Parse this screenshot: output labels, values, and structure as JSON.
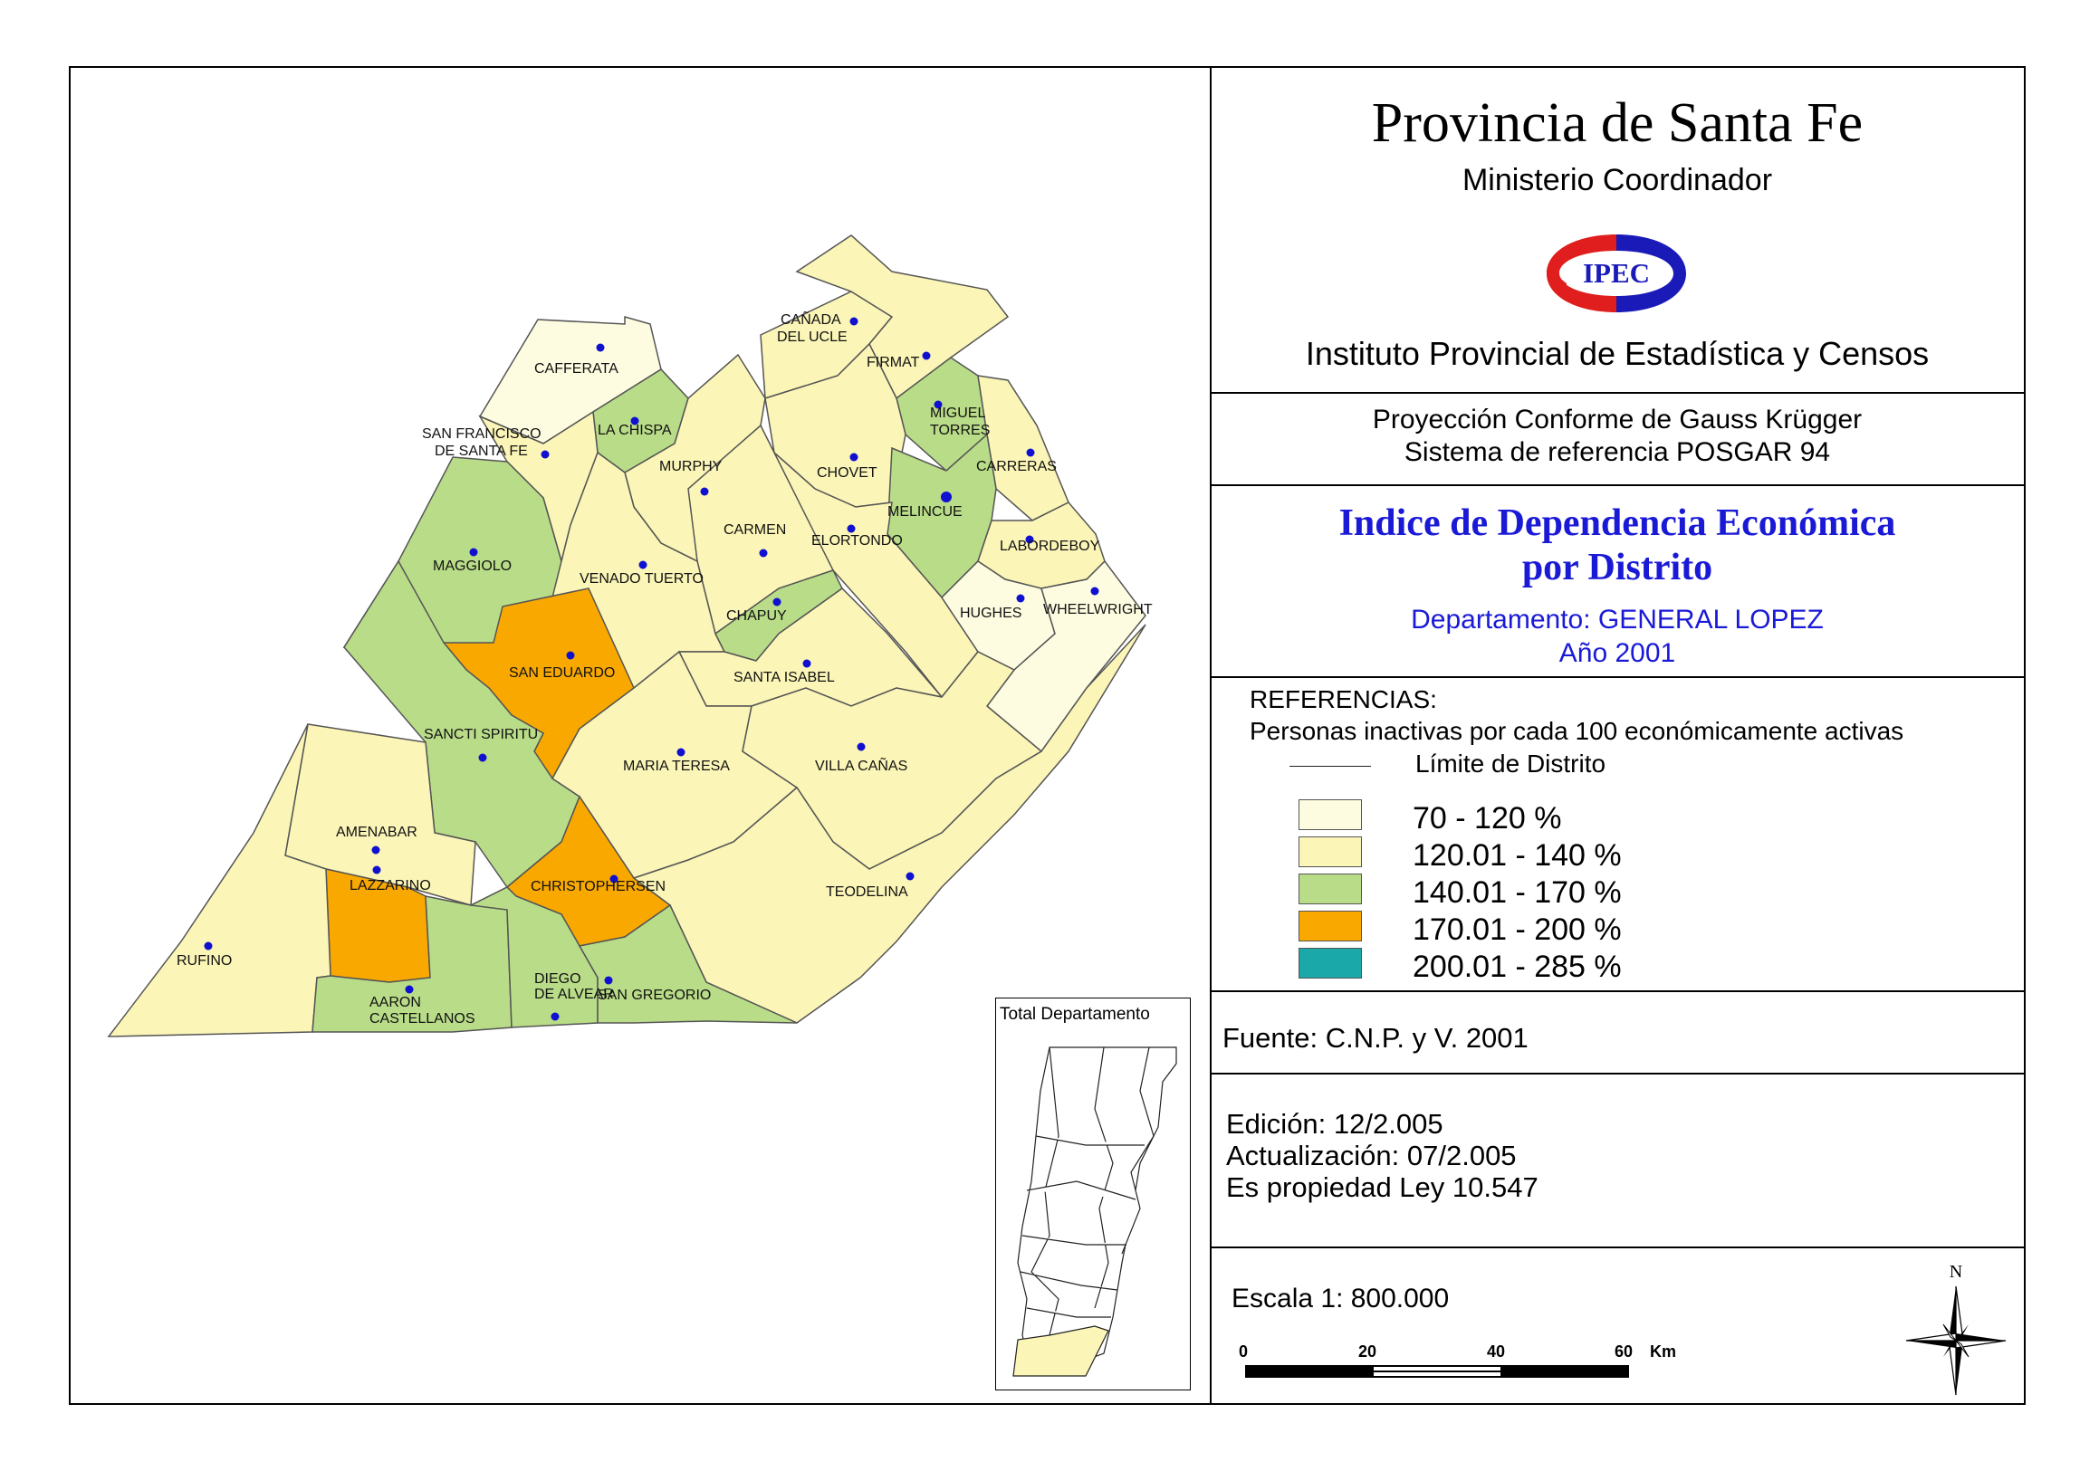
{
  "title": "Provincia de Santa Fe",
  "subtitle": "Ministerio Coordinador",
  "logo_text": "IPEC",
  "institute": "Instituto Provincial de Estadística y Censos",
  "projection": [
    "Proyección Conforme de Gauss Krügger",
    "Sistema de referencia POSGAR 94"
  ],
  "map_title": [
    "Indice de Dependencia Económica",
    "por Distrito"
  ],
  "department": "Departamento:  GENERAL LOPEZ",
  "year": "Año 2001",
  "legend": {
    "title": "REFERENCIAS:",
    "description": "Personas inactivas por cada 100 económicamente activas",
    "boundary_label": "Límite de  Distrito",
    "classes": [
      {
        "label": "70 - 120 %",
        "color": "#fdfce0"
      },
      {
        "label": "120.01 - 140 %",
        "color": "#fbf5b7"
      },
      {
        "label": "140.01 - 170 %",
        "color": "#b9dc88"
      },
      {
        "label": "170.01 - 200 %",
        "color": "#f9a800"
      },
      {
        "label": "200.01 - 285 %",
        "color": "#1ba8a8"
      }
    ]
  },
  "source": "Fuente:  C.N.P. y V. 2001",
  "edition": [
    "Edición:  12/2.005",
    "Actualización:  07/2.005",
    "Es propiedad Ley 10.547"
  ],
  "scale": {
    "text": "Escala 1: 800.000",
    "ticks": [
      "0",
      "20",
      "40",
      "60"
    ],
    "unit": "Km"
  },
  "north_label": "N",
  "inset_title": "Total Departamento",
  "districts": [
    {
      "name": "CAFFERATA",
      "class": 0
    },
    {
      "name": "LA CHISPA",
      "class": 2
    },
    {
      "name": "SAN FRANCISCO DE SANTA FE",
      "class": 1
    },
    {
      "name": "MAGGIOLO",
      "class": 2
    },
    {
      "name": "MURPHY",
      "class": 1
    },
    {
      "name": "CAÑADA DEL UCLE",
      "class": 1
    },
    {
      "name": "FIRMAT",
      "class": 1
    },
    {
      "name": "MIGUEL TORRES",
      "class": 2
    },
    {
      "name": "CHOVET",
      "class": 1
    },
    {
      "name": "CARRERAS",
      "class": 1
    },
    {
      "name": "MELINCUE",
      "class": 2
    },
    {
      "name": "CARMEN",
      "class": 1
    },
    {
      "name": "ELORTONDO",
      "class": 1
    },
    {
      "name": "LABORDEBOY",
      "class": 1
    },
    {
      "name": "VENADO TUERTO",
      "class": 1
    },
    {
      "name": "CHAPUY",
      "class": 2
    },
    {
      "name": "HUGHES",
      "class": 0
    },
    {
      "name": "WHEELWRIGHT",
      "class": 0
    },
    {
      "name": "SAN EDUARDO",
      "class": 3
    },
    {
      "name": "SANTA ISABEL",
      "class": 1
    },
    {
      "name": "SANCTI SPIRITU",
      "class": 2
    },
    {
      "name": "MARIA TERESA",
      "class": 1
    },
    {
      "name": "VILLA CAÑAS",
      "class": 1
    },
    {
      "name": "AMENABAR",
      "class": 1
    },
    {
      "name": "LAZZARINO",
      "class": 3
    },
    {
      "name": "CHRISTOPHERSEN",
      "class": 3
    },
    {
      "name": "TEODELINA",
      "class": 1
    },
    {
      "name": "RUFINO",
      "class": 1
    },
    {
      "name": "AARON CASTELLANOS",
      "class": 2
    },
    {
      "name": "DIEGO DE ALVEAR",
      "class": 2
    },
    {
      "name": "SAN GREGORIO",
      "class": 2
    }
  ]
}
